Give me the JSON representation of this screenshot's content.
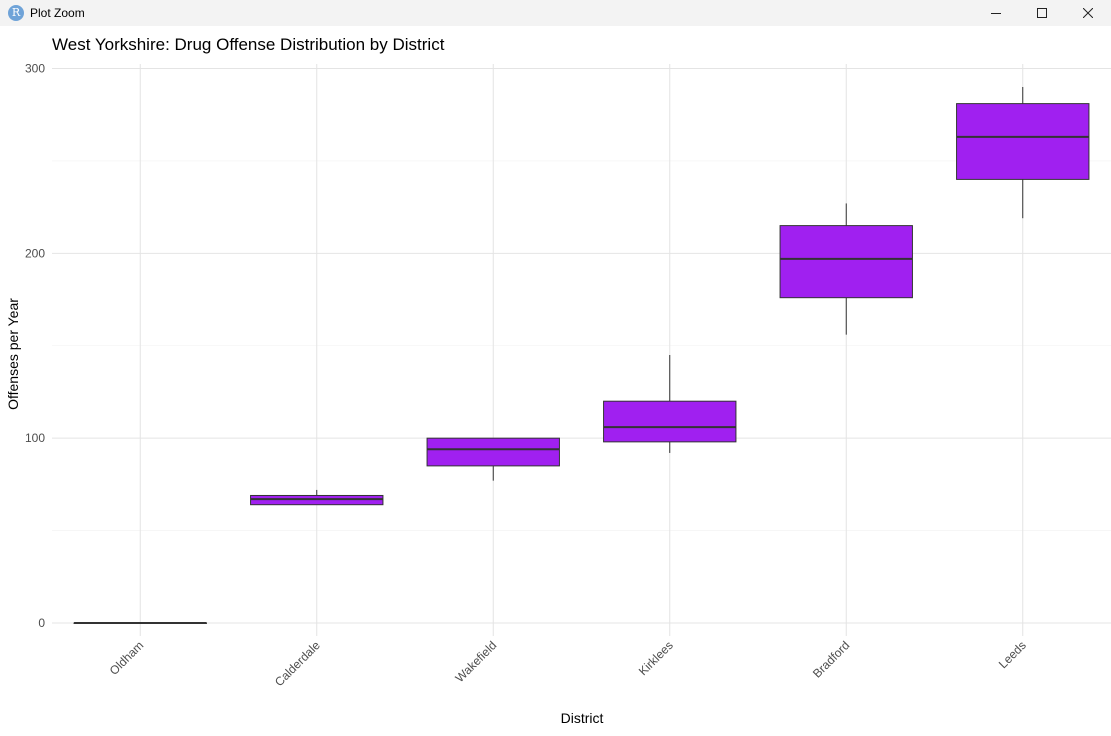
{
  "window": {
    "title": "Plot Zoom",
    "icon_letter": "R",
    "controls": [
      "minimize-icon",
      "maximize-icon",
      "close-icon"
    ]
  },
  "chart_data": {
    "type": "boxplot",
    "title": "West Yorkshire: Drug Offense Distribution by District",
    "xlabel": "District",
    "ylabel": "Offenses per Year",
    "ylim": [
      -12,
      306
    ],
    "yticks": [
      0,
      100,
      200,
      300
    ],
    "grid": true,
    "fill_color": "#A020F0",
    "categories": [
      "Oldham",
      "Calderdale",
      "Wakefield",
      "Kirklees",
      "Bradford",
      "Leeds"
    ],
    "boxes": [
      {
        "category": "Oldham",
        "min": 0,
        "q1": 0,
        "median": 0,
        "q3": 0,
        "max": 0
      },
      {
        "category": "Calderdale",
        "min": 64,
        "q1": 64,
        "median": 67,
        "q3": 69,
        "max": 72
      },
      {
        "category": "Wakefield",
        "min": 77,
        "q1": 85,
        "median": 94,
        "q3": 100,
        "max": 100
      },
      {
        "category": "Kirklees",
        "min": 92,
        "q1": 98,
        "median": 106,
        "q3": 120,
        "max": 145
      },
      {
        "category": "Bradford",
        "min": 156,
        "q1": 176,
        "median": 197,
        "q3": 215,
        "max": 227
      },
      {
        "category": "Leeds",
        "min": 219,
        "q1": 240,
        "median": 263,
        "q3": 281,
        "max": 290
      }
    ]
  }
}
